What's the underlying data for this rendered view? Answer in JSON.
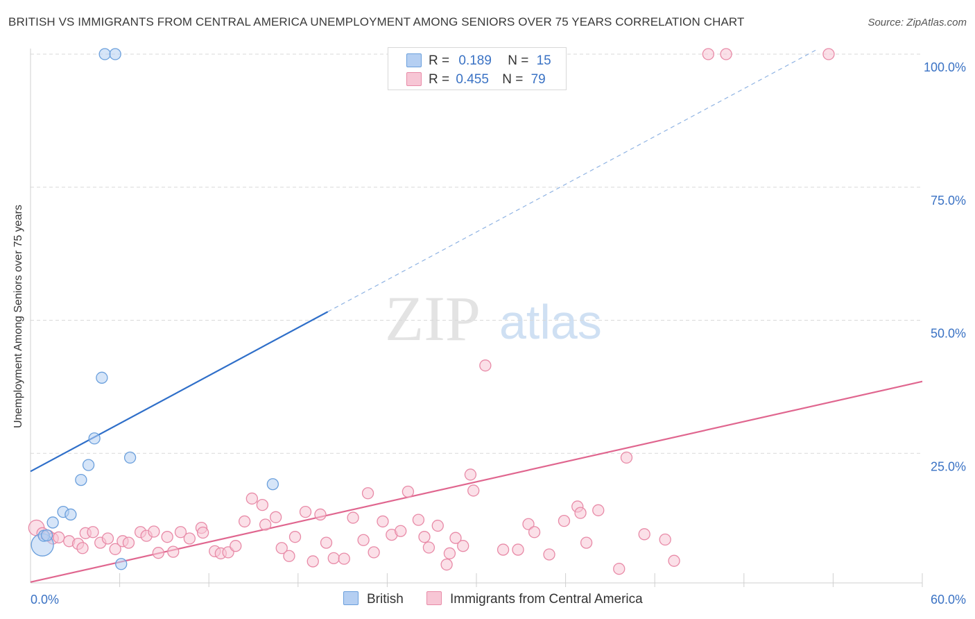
{
  "title": "BRITISH VS IMMIGRANTS FROM CENTRAL AMERICA UNEMPLOYMENT AMONG SENIORS OVER 75 YEARS CORRELATION CHART",
  "source": "Source: ZipAtlas.com",
  "watermark": {
    "zip": "ZIP",
    "atlas": "atlas"
  },
  "colors": {
    "british": "#6a9fdc",
    "british_fill": "#b5cff2",
    "british_line": "#2f6fc9",
    "immigrants": "#e88aa7",
    "immigrants_fill": "#f7c6d5",
    "immigrants_line": "#e0668f",
    "tick_label": "#3a72c4",
    "grid": "#d9d9d9"
  },
  "legend": {
    "british": {
      "r_label": "R =",
      "r_value": "0.189",
      "n_label": "N =",
      "n_value": "15"
    },
    "immigrants": {
      "r_label": "R =",
      "r_value": "0.455",
      "n_label": "N =",
      "n_value": "79"
    }
  },
  "bottom_legend": {
    "british": "British",
    "immigrants": "Immigrants from Central America"
  },
  "chart_data": {
    "type": "scatter",
    "title": "BRITISH VS IMMIGRANTS FROM CENTRAL AMERICA UNEMPLOYMENT AMONG SENIORS OVER 75 YEARS CORRELATION CHART",
    "xlabel": "",
    "ylabel": "Unemployment Among Seniors over 75 years",
    "xlim": [
      0,
      60
    ],
    "ylim": [
      0,
      100
    ],
    "x_tick_labels": [
      "0.0%",
      "60.0%"
    ],
    "y_ticks": [
      25,
      50,
      75,
      100
    ],
    "y_tick_labels": [
      "25.0%",
      "50.0%",
      "75.0%",
      "100.0%"
    ],
    "grid": true,
    "legend_position": "top-center",
    "series": [
      {
        "name": "British",
        "r": 0.189,
        "n": 15,
        "points": [
          [
            0.8,
            7.8,
            2
          ],
          [
            0.9,
            9.5,
            1
          ],
          [
            1.1,
            9.6,
            1
          ],
          [
            1.5,
            12.0,
            1
          ],
          [
            2.2,
            14.0,
            1
          ],
          [
            2.7,
            13.5,
            1
          ],
          [
            3.4,
            20.0,
            1
          ],
          [
            3.9,
            22.8,
            1
          ],
          [
            4.3,
            27.8,
            1
          ],
          [
            4.8,
            39.2,
            1
          ],
          [
            6.7,
            24.2,
            1
          ],
          [
            6.1,
            4.2,
            1
          ],
          [
            5.0,
            100,
            1
          ],
          [
            5.7,
            100,
            1
          ],
          [
            16.3,
            19.2,
            1
          ]
        ],
        "trend": {
          "x0": 0,
          "y0": 21.6,
          "x1": 20,
          "y1": 51.6,
          "dashed_to_x": 53,
          "dashed_to_y": 101
        }
      },
      {
        "name": "Immigrants from Central America",
        "r": 0.455,
        "n": 79,
        "points": [
          [
            0.4,
            11.0,
            1.4
          ],
          [
            0.8,
            10.0,
            1
          ],
          [
            1.2,
            9.5,
            1
          ],
          [
            1.5,
            9.0,
            1
          ],
          [
            1.9,
            9.2,
            1
          ],
          [
            2.6,
            8.5,
            1
          ],
          [
            3.2,
            8.0,
            1
          ],
          [
            3.7,
            10.0,
            1
          ],
          [
            3.5,
            7.2,
            1
          ],
          [
            4.2,
            10.2,
            1
          ],
          [
            4.7,
            8.2,
            1
          ],
          [
            5.2,
            9.0,
            1
          ],
          [
            5.7,
            7.0,
            1
          ],
          [
            6.2,
            8.5,
            1
          ],
          [
            6.6,
            8.2,
            1
          ],
          [
            7.4,
            10.2,
            1
          ],
          [
            7.8,
            9.5,
            1
          ],
          [
            8.3,
            10.3,
            1
          ],
          [
            8.6,
            6.3,
            1
          ],
          [
            9.2,
            9.3,
            1
          ],
          [
            9.6,
            6.5,
            1
          ],
          [
            10.1,
            10.2,
            1
          ],
          [
            10.7,
            9.0,
            1
          ],
          [
            11.5,
            11.0,
            1
          ],
          [
            11.6,
            10.1,
            1
          ],
          [
            12.4,
            6.6,
            1
          ],
          [
            12.8,
            6.2,
            1
          ],
          [
            13.3,
            6.4,
            1
          ],
          [
            13.8,
            7.6,
            1
          ],
          [
            14.4,
            12.2,
            1
          ],
          [
            14.9,
            16.5,
            1
          ],
          [
            15.6,
            15.3,
            1
          ],
          [
            15.8,
            11.6,
            1
          ],
          [
            16.5,
            13.0,
            1
          ],
          [
            16.9,
            7.2,
            1
          ],
          [
            17.4,
            5.7,
            1
          ],
          [
            17.8,
            9.3,
            1
          ],
          [
            18.5,
            14.0,
            1
          ],
          [
            19.0,
            4.7,
            1
          ],
          [
            19.5,
            13.5,
            1
          ],
          [
            19.9,
            8.2,
            1
          ],
          [
            20.4,
            5.3,
            1
          ],
          [
            21.1,
            5.2,
            1
          ],
          [
            21.7,
            12.9,
            1
          ],
          [
            22.4,
            8.7,
            1
          ],
          [
            22.7,
            17.5,
            1
          ],
          [
            23.1,
            6.4,
            1
          ],
          [
            23.7,
            12.2,
            1
          ],
          [
            24.3,
            9.7,
            1
          ],
          [
            24.9,
            10.4,
            1
          ],
          [
            25.4,
            17.8,
            1
          ],
          [
            26.1,
            12.5,
            1
          ],
          [
            26.5,
            9.3,
            1
          ],
          [
            26.8,
            7.3,
            1
          ],
          [
            27.4,
            11.4,
            1
          ],
          [
            28.0,
            4.1,
            1
          ],
          [
            28.2,
            6.2,
            1
          ],
          [
            28.6,
            9.1,
            1
          ],
          [
            29.1,
            7.6,
            1
          ],
          [
            29.6,
            21.0,
            1
          ],
          [
            29.8,
            18.0,
            1
          ],
          [
            30.6,
            41.5,
            1
          ],
          [
            31.8,
            6.9,
            1
          ],
          [
            32.8,
            6.9,
            1
          ],
          [
            33.5,
            11.7,
            1
          ],
          [
            33.9,
            10.2,
            1
          ],
          [
            34.9,
            6.0,
            1
          ],
          [
            35.9,
            12.3,
            1
          ],
          [
            36.8,
            15.0,
            1
          ],
          [
            37.0,
            13.8,
            1
          ],
          [
            37.4,
            8.2,
            1
          ],
          [
            38.2,
            14.3,
            1
          ],
          [
            39.6,
            3.3,
            1
          ],
          [
            40.1,
            24.2,
            1
          ],
          [
            41.3,
            9.8,
            1
          ],
          [
            42.7,
            8.8,
            1
          ],
          [
            43.3,
            4.8,
            1
          ],
          [
            45.6,
            100,
            1
          ],
          [
            46.8,
            100,
            1
          ],
          [
            53.7,
            100,
            1
          ]
        ],
        "trend": {
          "x0": 0,
          "y0": 0.8,
          "x1": 60,
          "y1": 38.5
        }
      }
    ]
  }
}
